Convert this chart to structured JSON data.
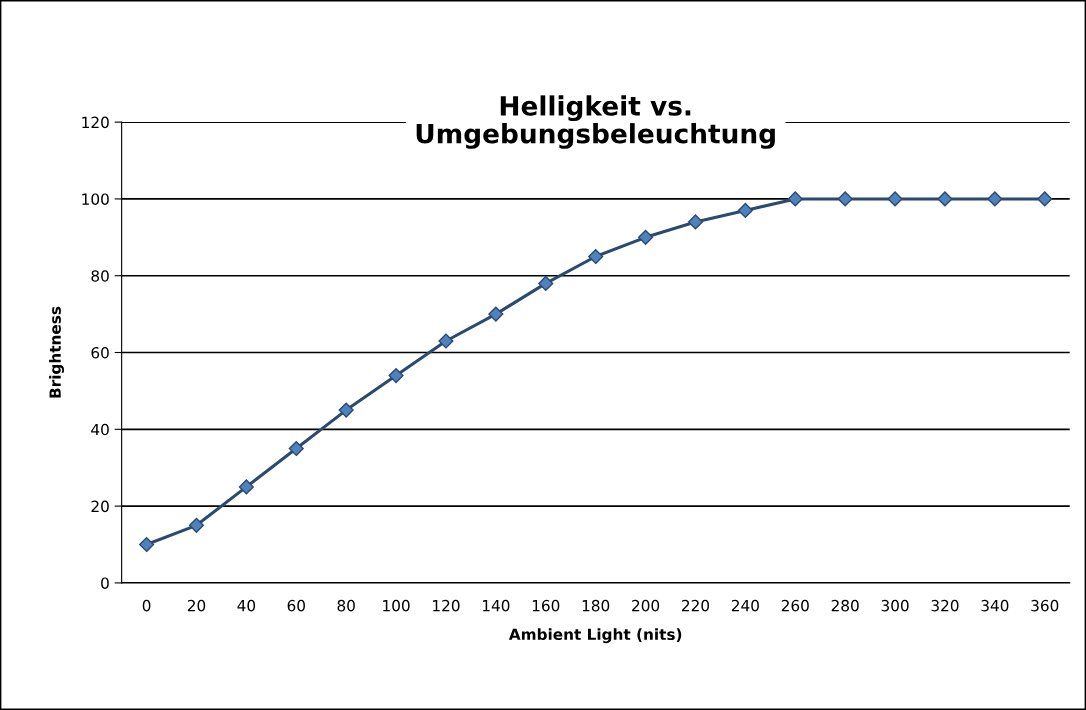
{
  "chart_data": {
    "type": "line",
    "title": "Helligkeit vs.\nUmgebungsbeleuchtung",
    "xlabel": "Ambient Light (nits)",
    "ylabel": "Brightness",
    "categories": [
      "0",
      "20",
      "40",
      "60",
      "80",
      "100",
      "120",
      "140",
      "160",
      "180",
      "200",
      "220",
      "240",
      "260",
      "280",
      "300",
      "320",
      "340",
      "360"
    ],
    "series": [
      {
        "color": "#2a4a72",
        "values": [
          10,
          15,
          25,
          35,
          45,
          54,
          63,
          70,
          78,
          85,
          90,
          94,
          97,
          100,
          100,
          100,
          100,
          100,
          100
        ]
      }
    ],
    "ylim": [
      0,
      120
    ],
    "yticks": [
      0,
      20,
      40,
      60,
      80,
      100,
      120
    ],
    "grid": "y",
    "marker": "diamond",
    "line_style": "solid",
    "legend": false
  }
}
